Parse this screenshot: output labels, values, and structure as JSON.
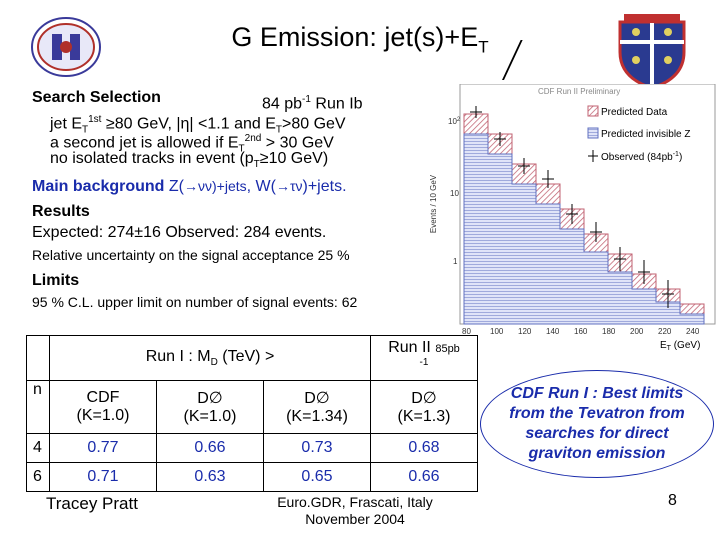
{
  "header": {
    "title_prefix": "G Emission: jet(s)+E",
    "title_sub": "T"
  },
  "selection": {
    "heading": "Search Selection",
    "lumi": "84 pb",
    "lumi_sup": "-1",
    "lumi_suffix": " Run Ib",
    "cut1_a": "jet E",
    "cut1_sub": "T",
    "cut1_sup": "1st",
    "cut1_b": " ≥80 GeV, |η| <1.1 and E",
    "cut1_sub2": "T",
    "cut1_c": ">80 GeV",
    "cut2_a": "a second jet is allowed if E",
    "cut2_sub": "T",
    "cut2_sup": "2nd",
    "cut2_b": " > 30 GeV",
    "cut3_a": "no isolated tracks in event (p",
    "cut3_sub": "T",
    "cut3_b": "≥10 GeV)"
  },
  "background": {
    "label": "Main background ",
    "z_big": "Z(",
    "z_arrow": "→νν",
    "z_close": ")+jets",
    "sep": ", ",
    "w_big": "W(",
    "w_arrow": "→τν",
    "w_close": ")+jets."
  },
  "results": {
    "heading": "Results",
    "expected_line": "Expected: 274±16  Observed: 284 events.",
    "uncertainty": "Relative uncertainty on the signal acceptance 25 %"
  },
  "limits": {
    "heading": "Limits",
    "text": "95 % C.L. upper limit on number of signal events: 62"
  },
  "table": {
    "run1_header": "Run I : M",
    "run1_header_sub": "D",
    "run1_header_tail": " (TeV) >",
    "run2_header": "Run II ",
    "run2_lumi": "85pb",
    "run2_lumi_sup": "-1",
    "col_n": "n",
    "cols": [
      {
        "exp": "CDF",
        "k": "(K=1.0)"
      },
      {
        "exp": "D∅",
        "k": "(K=1.0)"
      },
      {
        "exp": "D∅",
        "k": "(K=1.34)"
      },
      {
        "exp": "D∅",
        "k": "(K=1.3)"
      }
    ],
    "rows": [
      {
        "n": "4",
        "values": [
          "0.77",
          "0.66",
          "0.73",
          "0.68"
        ]
      },
      {
        "n": "6",
        "values": [
          "0.71",
          "0.63",
          "0.65",
          "0.66"
        ]
      }
    ]
  },
  "conclusion": "CDF Run I : Best limits from the Tevatron from searches for direct graviton emission",
  "footer": {
    "author": "Tracey Pratt",
    "conference_line1": "Euro.GDR, Frascati, Italy",
    "conference_line2": "November 2004",
    "page": "8"
  },
  "plot": {
    "preliminary": "CDF Run II Preliminary",
    "legend": [
      "Predicted Data",
      "Predicted invisible Z",
      "Observed (84pb"
    ],
    "legend_sup": "-1",
    "legend_close": ")",
    "ylabel": "Events / 10 GeV",
    "xlabel": "E",
    "xlabel_sub": "T",
    "xlabel_unit": " (GeV)",
    "xticks": [
      "80",
      "100",
      "120",
      "140",
      "160",
      "180",
      "200",
      "220",
      "240"
    ],
    "yticks": [
      "10",
      "10",
      "1"
    ],
    "ytick_sups": [
      "2",
      "",
      ""
    ],
    "colors": {
      "data_hatch": "#c06070",
      "zinv_hatch": "#6070c0"
    }
  }
}
